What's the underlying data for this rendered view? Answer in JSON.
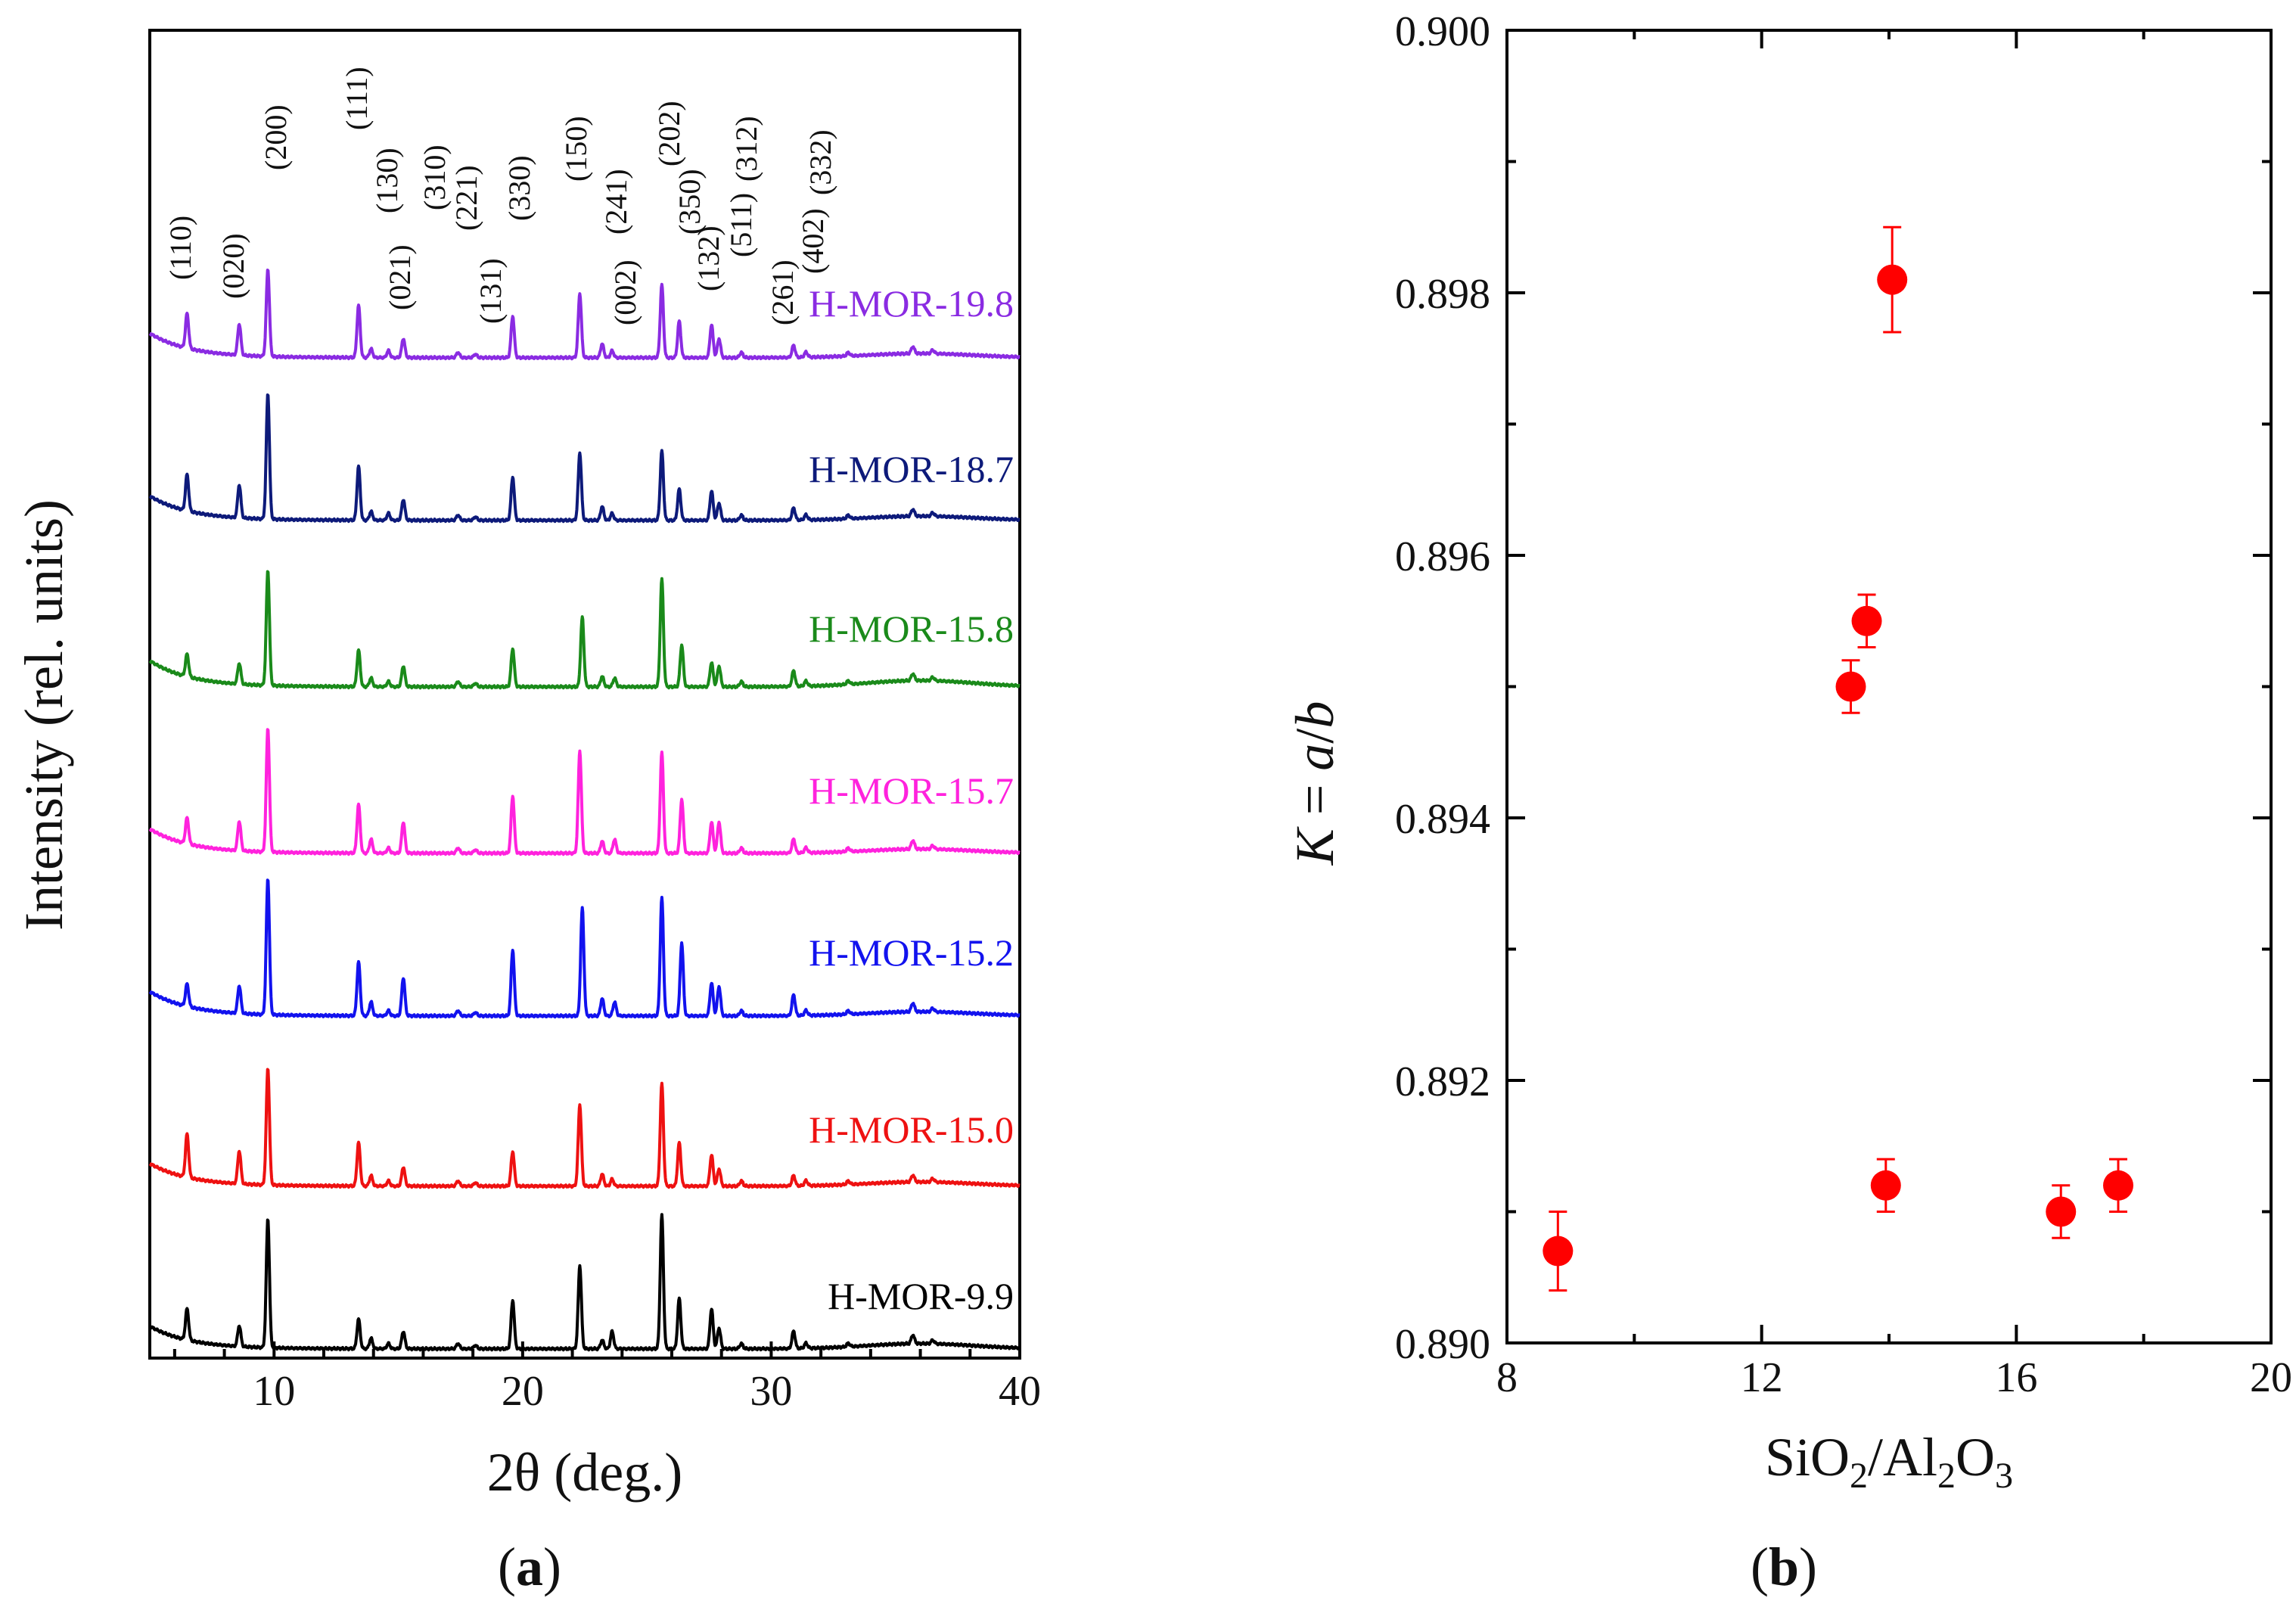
{
  "chart_data": [
    {
      "type": "line",
      "panel_label": "a",
      "xlabel": "2θ (deg.)",
      "ylabel": "Intensity (rel. units)",
      "xlim": [
        5,
        40
      ],
      "xticks": [
        10,
        20,
        30,
        40
      ],
      "series": [
        {
          "name": "H-MOR-19.8",
          "color": "#8a2be2",
          "base": 0.14,
          "peaks": [
            [
              6.5,
              0.2
            ],
            [
              8.6,
              0.18
            ],
            [
              9.75,
              0.5
            ],
            [
              13.4,
              0.3
            ],
            [
              13.9,
              0.05
            ],
            [
              14.6,
              0.04
            ],
            [
              15.2,
              0.11
            ],
            [
              17.4,
              0.03
            ],
            [
              18.1,
              0.02
            ],
            [
              19.6,
              0.24
            ],
            [
              22.3,
              0.37
            ],
            [
              23.2,
              0.08
            ],
            [
              23.6,
              0.04
            ],
            [
              25.6,
              0.42
            ],
            [
              26.3,
              0.21
            ],
            [
              27.6,
              0.19
            ],
            [
              27.9,
              0.11
            ],
            [
              28.8,
              0.03
            ],
            [
              30.9,
              0.07
            ],
            [
              31.4,
              0.03
            ],
            [
              33.1,
              0.02
            ],
            [
              35.7,
              0.04
            ],
            [
              36.5,
              0.02
            ]
          ],
          "tail": 0.08
        },
        {
          "name": "H-MOR-18.7",
          "color": "#0d1a7a",
          "base": 0.14,
          "peaks": [
            [
              6.5,
              0.21
            ],
            [
              8.6,
              0.19
            ],
            [
              9.75,
              0.72
            ],
            [
              13.4,
              0.31
            ],
            [
              13.9,
              0.05
            ],
            [
              14.6,
              0.04
            ],
            [
              15.2,
              0.12
            ],
            [
              17.4,
              0.03
            ],
            [
              18.1,
              0.02
            ],
            [
              19.6,
              0.25
            ],
            [
              22.3,
              0.39
            ],
            [
              23.2,
              0.08
            ],
            [
              23.6,
              0.04
            ],
            [
              25.6,
              0.4
            ],
            [
              26.3,
              0.18
            ],
            [
              27.6,
              0.17
            ],
            [
              27.9,
              0.1
            ],
            [
              28.8,
              0.03
            ],
            [
              30.9,
              0.07
            ],
            [
              31.4,
              0.03
            ],
            [
              33.1,
              0.02
            ],
            [
              35.7,
              0.04
            ],
            [
              36.5,
              0.02
            ]
          ],
          "tail": 0.08
        },
        {
          "name": "H-MOR-15.8",
          "color": "#1a8a1a",
          "base": 0.15,
          "peaks": [
            [
              6.5,
              0.13
            ],
            [
              8.6,
              0.12
            ],
            [
              9.75,
              0.66
            ],
            [
              13.4,
              0.21
            ],
            [
              13.9,
              0.05
            ],
            [
              14.6,
              0.03
            ],
            [
              15.2,
              0.12
            ],
            [
              17.4,
              0.03
            ],
            [
              18.1,
              0.02
            ],
            [
              19.6,
              0.22
            ],
            [
              22.4,
              0.4
            ],
            [
              23.2,
              0.06
            ],
            [
              23.7,
              0.05
            ],
            [
              25.6,
              0.62
            ],
            [
              26.4,
              0.24
            ],
            [
              27.6,
              0.14
            ],
            [
              27.9,
              0.12
            ],
            [
              28.8,
              0.03
            ],
            [
              30.9,
              0.09
            ],
            [
              31.4,
              0.03
            ],
            [
              33.1,
              0.02
            ],
            [
              35.7,
              0.04
            ],
            [
              36.5,
              0.02
            ]
          ],
          "tail": 0.12
        },
        {
          "name": "H-MOR-15.7",
          "color": "#ff22dd",
          "base": 0.14,
          "peaks": [
            [
              6.5,
              0.15
            ],
            [
              8.6,
              0.17
            ],
            [
              9.75,
              0.71
            ],
            [
              13.4,
              0.28
            ],
            [
              13.9,
              0.08
            ],
            [
              14.6,
              0.03
            ],
            [
              15.2,
              0.18
            ],
            [
              17.4,
              0.03
            ],
            [
              18.1,
              0.02
            ],
            [
              19.6,
              0.33
            ],
            [
              22.3,
              0.59
            ],
            [
              23.2,
              0.07
            ],
            [
              23.7,
              0.08
            ],
            [
              25.6,
              0.58
            ],
            [
              26.4,
              0.31
            ],
            [
              27.6,
              0.18
            ],
            [
              27.9,
              0.18
            ],
            [
              28.8,
              0.03
            ],
            [
              30.9,
              0.08
            ],
            [
              31.4,
              0.03
            ],
            [
              33.1,
              0.02
            ],
            [
              35.7,
              0.05
            ],
            [
              36.5,
              0.02
            ]
          ],
          "tail": 0.08
        },
        {
          "name": "H-MOR-15.2",
          "color": "#1212ee",
          "base": 0.14,
          "peaks": [
            [
              6.5,
              0.13
            ],
            [
              8.6,
              0.16
            ],
            [
              9.75,
              0.78
            ],
            [
              13.4,
              0.31
            ],
            [
              13.9,
              0.08
            ],
            [
              14.6,
              0.03
            ],
            [
              15.2,
              0.22
            ],
            [
              17.4,
              0.03
            ],
            [
              18.1,
              0.02
            ],
            [
              19.6,
              0.38
            ],
            [
              22.4,
              0.62
            ],
            [
              23.2,
              0.1
            ],
            [
              23.7,
              0.08
            ],
            [
              25.6,
              0.68
            ],
            [
              26.4,
              0.42
            ],
            [
              27.6,
              0.19
            ],
            [
              27.9,
              0.17
            ],
            [
              28.8,
              0.03
            ],
            [
              30.9,
              0.12
            ],
            [
              31.4,
              0.03
            ],
            [
              33.1,
              0.02
            ],
            [
              35.7,
              0.05
            ],
            [
              36.5,
              0.02
            ]
          ],
          "tail": 0.08
        },
        {
          "name": "H-MOR-15.0",
          "color": "#ee1111",
          "base": 0.13,
          "peaks": [
            [
              6.5,
              0.25
            ],
            [
              8.6,
              0.19
            ],
            [
              9.75,
              0.67
            ],
            [
              13.4,
              0.25
            ],
            [
              13.9,
              0.06
            ],
            [
              14.6,
              0.03
            ],
            [
              15.2,
              0.11
            ],
            [
              17.4,
              0.03
            ],
            [
              18.1,
              0.02
            ],
            [
              19.6,
              0.2
            ],
            [
              22.3,
              0.47
            ],
            [
              23.2,
              0.07
            ],
            [
              23.6,
              0.04
            ],
            [
              25.6,
              0.59
            ],
            [
              26.3,
              0.25
            ],
            [
              27.6,
              0.18
            ],
            [
              27.9,
              0.1
            ],
            [
              28.8,
              0.03
            ],
            [
              30.9,
              0.06
            ],
            [
              31.4,
              0.03
            ],
            [
              33.1,
              0.02
            ],
            [
              35.7,
              0.04
            ],
            [
              36.5,
              0.02
            ]
          ],
          "tail": 0.08
        },
        {
          "name": "H-MOR-9.9",
          "color": "#000000",
          "base": 0.13,
          "peaks": [
            [
              6.5,
              0.18
            ],
            [
              8.6,
              0.12
            ],
            [
              9.75,
              0.74
            ],
            [
              13.4,
              0.17
            ],
            [
              13.9,
              0.06
            ],
            [
              14.6,
              0.03
            ],
            [
              15.2,
              0.1
            ],
            [
              17.4,
              0.03
            ],
            [
              18.1,
              0.02
            ],
            [
              19.6,
              0.28
            ],
            [
              22.3,
              0.48
            ],
            [
              23.2,
              0.05
            ],
            [
              23.6,
              0.1
            ],
            [
              25.6,
              0.77
            ],
            [
              26.3,
              0.29
            ],
            [
              27.6,
              0.23
            ],
            [
              27.9,
              0.12
            ],
            [
              28.8,
              0.03
            ],
            [
              30.9,
              0.1
            ],
            [
              31.4,
              0.03
            ],
            [
              33.1,
              0.02
            ],
            [
              35.7,
              0.05
            ],
            [
              36.5,
              0.02
            ]
          ],
          "tail": 0.1
        }
      ],
      "annotations": [
        {
          "text": "(110)",
          "x": 6.5
        },
        {
          "text": "(020)",
          "x": 8.6
        },
        {
          "text": "(200)",
          "x": 9.75
        },
        {
          "text": "(111)",
          "x": 13.9
        },
        {
          "text": "(130)",
          "x": 14.6
        },
        {
          "text": "(021)",
          "x": 15.2
        },
        {
          "text": "(310)",
          "x": 15.8
        },
        {
          "text": "(221)",
          "x": 18.1
        },
        {
          "text": "(131)",
          "x": 17.6
        },
        {
          "text": "(330)",
          "x": 19.6
        },
        {
          "text": "(150)",
          "x": 22.3
        },
        {
          "text": "(241)",
          "x": 23.6
        },
        {
          "text": "(002)",
          "x": 23.2
        },
        {
          "text": "(202)",
          "x": 25.6
        },
        {
          "text": "(350)",
          "x": 26.3
        },
        {
          "text": "(132)",
          "x": 27.6
        },
        {
          "text": "(511)",
          "x": 27.9
        },
        {
          "text": "(312)",
          "x": 28.8
        },
        {
          "text": "(261)",
          "x": 30.9
        },
        {
          "text": "(402)",
          "x": 31.4
        },
        {
          "text": "(332)",
          "x": 33.1
        }
      ]
    },
    {
      "type": "scatter",
      "panel_label": "b",
      "xlabel": "SiO2/Al2O3",
      "ylabel": "K = a/b",
      "xlim": [
        8,
        20
      ],
      "ylim": [
        0.89,
        0.9
      ],
      "xticks": [
        8,
        12,
        16,
        20
      ],
      "yticks": [
        "0.890",
        "0.892",
        "0.894",
        "0.896",
        "0.898",
        "0.900"
      ],
      "marker_color": "#ff0000",
      "points": [
        {
          "x": 8.8,
          "y": 0.8907,
          "err": 0.0003
        },
        {
          "x": 13.4,
          "y": 0.895,
          "err": 0.0002
        },
        {
          "x": 13.65,
          "y": 0.8955,
          "err": 0.0002
        },
        {
          "x": 13.95,
          "y": 0.8912,
          "err": 0.0002
        },
        {
          "x": 14.05,
          "y": 0.8981,
          "err": 0.0004
        },
        {
          "x": 16.7,
          "y": 0.891,
          "err": 0.0002
        },
        {
          "x": 17.6,
          "y": 0.8912,
          "err": 0.0002
        }
      ]
    }
  ]
}
